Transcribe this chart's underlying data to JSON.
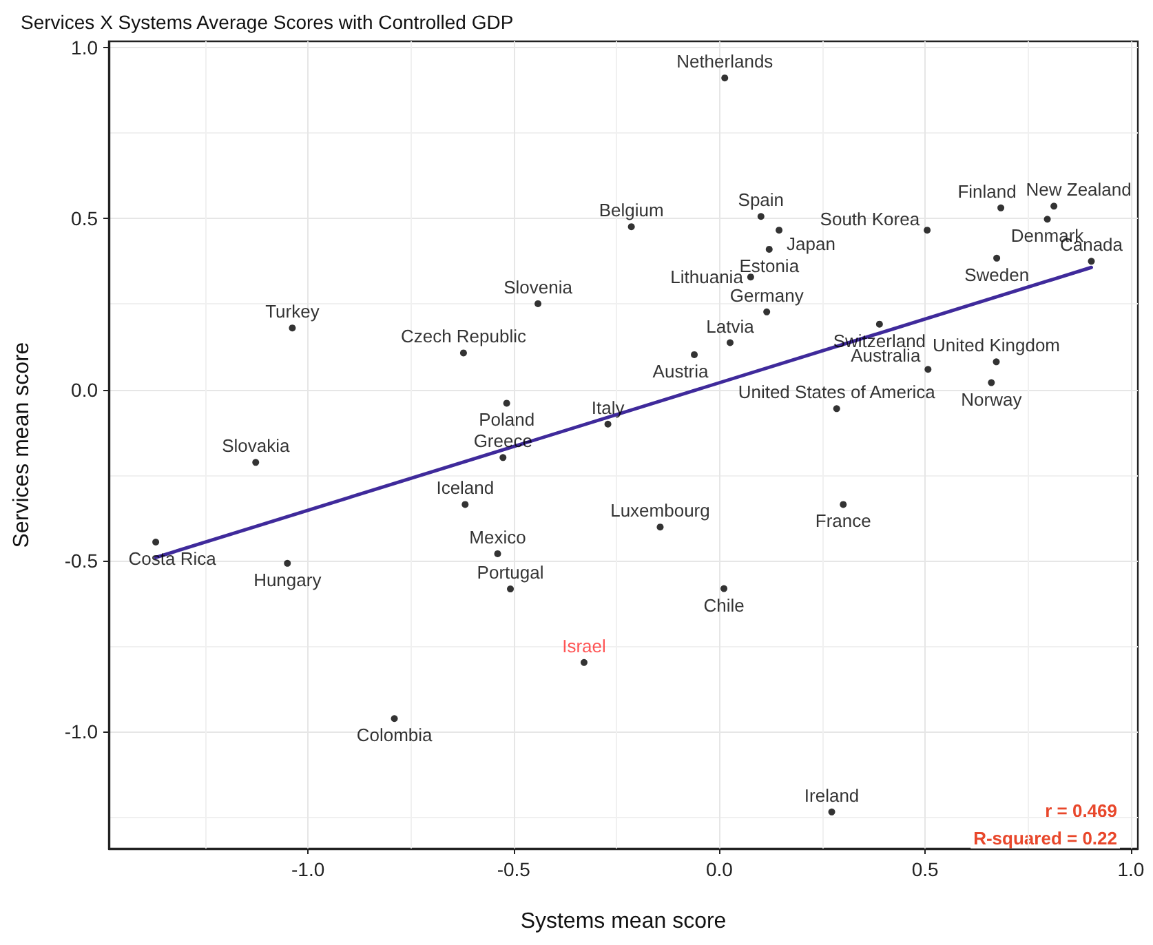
{
  "chart_data": {
    "type": "scatter",
    "title": "Services X Systems Average Scores with Controlled GDP",
    "xlabel": "Systems mean score",
    "ylabel": "Services mean score",
    "xlim": [
      -1.484,
      1.017
    ],
    "ylim": [
      -1.342,
      1.018
    ],
    "xticks": [
      {
        "value": -1,
        "label": "-1.0"
      },
      {
        "value": -0.5,
        "label": "-0.5"
      },
      {
        "value": 0,
        "label": "0.0"
      },
      {
        "value": 0.5,
        "label": "0.5"
      },
      {
        "value": 1,
        "label": "1.0"
      }
    ],
    "yticks": [
      {
        "value": -1,
        "label": "-1.0"
      },
      {
        "value": -0.5,
        "label": "-0.5"
      },
      {
        "value": 0,
        "label": "0.0"
      },
      {
        "value": 0.5,
        "label": "0.5"
      },
      {
        "value": 1,
        "label": "1.0"
      }
    ],
    "grid": true,
    "marker": "circle",
    "annotations": [
      "r = 0.469",
      "R-squared = 0.22"
    ],
    "series": [
      {
        "type": "scatter",
        "color": "#000000",
        "x": [
          0.013,
          -0.214,
          0.101,
          0.145,
          0.121,
          0.076,
          0.115,
          0.026,
          -0.061,
          0.389,
          0.507,
          0.285,
          0.505,
          0.684,
          0.813,
          0.797,
          0.674,
          0.904,
          0.673,
          0.661,
          -0.441,
          -0.622,
          -1.038,
          -0.517,
          -0.271,
          -0.526,
          -1.127,
          -0.618,
          -1.37,
          -1.05,
          -0.539,
          -0.508,
          -0.144,
          0.301,
          0.011,
          -0.79,
          0.273
        ],
        "values": [
          0.911,
          0.476,
          0.506,
          0.466,
          0.41,
          0.329,
          0.227,
          0.137,
          0.102,
          0.191,
          0.059,
          -0.056,
          0.466,
          0.531,
          0.536,
          0.498,
          0.384,
          0.375,
          0.081,
          0.02,
          0.251,
          0.107,
          0.18,
          -0.04,
          -0.101,
          -0.199,
          -0.213,
          -0.336,
          -0.446,
          -0.508,
          -0.48,
          -0.583,
          -0.402,
          -0.336,
          -0.582,
          -0.962,
          -1.235
        ],
        "value_labels": [
          "Netherlands",
          "Belgium",
          "Spain",
          "Japan",
          "Estonia",
          "Lithuania",
          "Germany",
          "Latvia",
          "Austria",
          "Switzerland",
          "Australia",
          "United States of America",
          "South Korea",
          "Finland",
          "New Zealand",
          "Denmark",
          "Sweden",
          "Canada",
          "United Kingdom",
          "Norway",
          "Slovenia",
          "Czech Republic",
          "Turkey",
          "Poland",
          "Italy",
          "Greece",
          "Slovakia",
          "Iceland",
          "Costa Rica",
          "Hungary",
          "Mexico",
          "Portugal",
          "Luxembourg",
          "France",
          "Chile",
          "Colombia",
          "Ireland"
        ]
      },
      {
        "type": "scatter",
        "color": "#ff2a2a",
        "colors": [
          "#000000"
        ],
        "x": [
          -0.329
        ],
        "values": [
          -0.798
        ],
        "value_labels": [
          "Israel"
        ]
      },
      {
        "type": "line",
        "color": "#3f2a9b",
        "marker": "none",
        "x": [
          -1.37,
          0.904
        ],
        "values": [
          -0.491,
          0.357
        ]
      }
    ]
  }
}
